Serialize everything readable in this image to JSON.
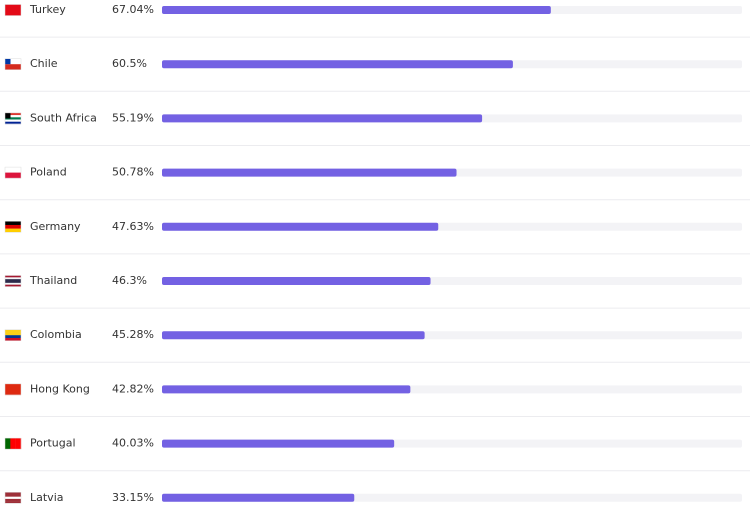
{
  "chart_data": {
    "type": "bar",
    "orientation": "horizontal",
    "categories": [
      "Turkey",
      "Chile",
      "South Africa",
      "Poland",
      "Germany",
      "Thailand",
      "Colombia",
      "Hong Kong",
      "Portugal",
      "Latvia"
    ],
    "values": [
      67.04,
      60.5,
      55.19,
      50.78,
      47.63,
      46.3,
      45.28,
      42.82,
      40.03,
      33.15
    ],
    "value_labels": [
      "67.04%",
      "60.5%",
      "55.19%",
      "50.78%",
      "47.63%",
      "46.3%",
      "45.28%",
      "42.82%",
      "40.03%",
      "33.15%"
    ],
    "color": "#7361e3",
    "track_color": "#f3f3f6",
    "xlim": [
      0,
      100
    ]
  }
}
